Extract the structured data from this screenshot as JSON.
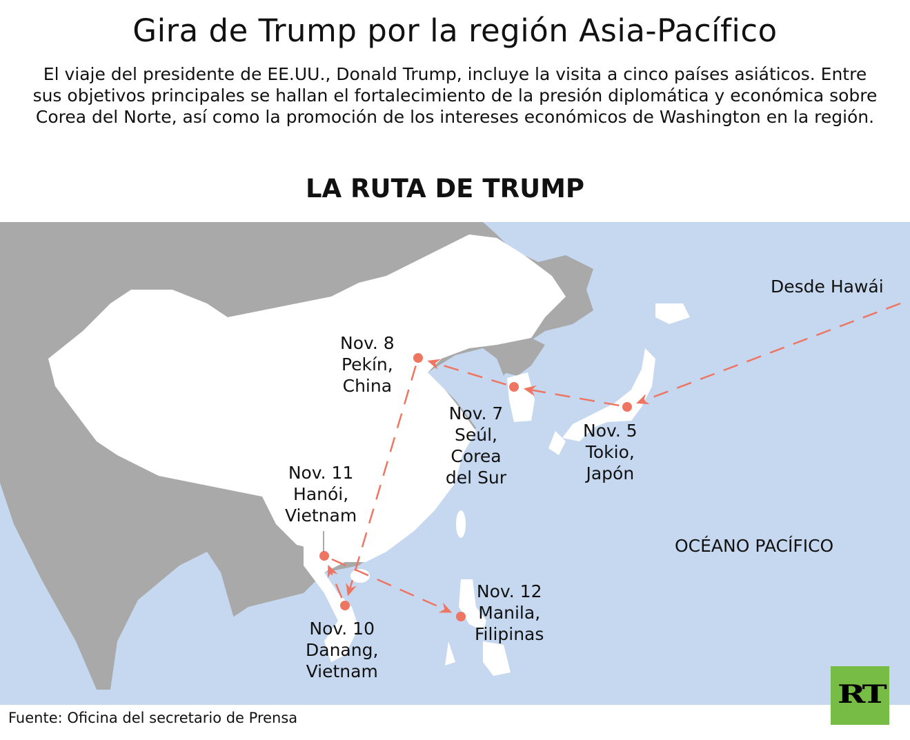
{
  "header": {
    "title": "Gira de Trump por la región Asia-Pacífico",
    "intro": "El viaje del presidente de EE.UU., Donald Trump, incluye la visita a cinco países asiáticos. Entre sus objetivos principales se hallan el fortalecimiento de la presión diplomática y económica sobre Corea del Norte, así como la promoción de los intereses económicos de Washington en la región.",
    "route_title": "LA RUTA DE TRUMP"
  },
  "map": {
    "colors": {
      "ocean": "#c6d8ef",
      "land": "#a9a9a9",
      "highlight": "#ffffff",
      "route": "#ee7561"
    },
    "origin_label": "Desde Hawái",
    "ocean_label": "OCÉANO PACÍFICO",
    "stops": [
      {
        "date": "Nov. 5",
        "city": "Tokio,",
        "country": "Japón"
      },
      {
        "date": "Nov. 7",
        "city": "Seúl,",
        "country": "Corea del Sur"
      },
      {
        "date": "Nov. 8",
        "city": "Pekín,",
        "country": "China"
      },
      {
        "date": "Nov. 10",
        "city": "Danang,",
        "country": "Vietnam"
      },
      {
        "date": "Nov. 11",
        "city": "Hanói,",
        "country": "Vietnam"
      },
      {
        "date": "Nov. 12",
        "city": "Manila,",
        "country": "Filipinas"
      }
    ]
  },
  "footer": {
    "source": "Fuente: Oficina del secretario de Prensa",
    "logo": "RT"
  }
}
